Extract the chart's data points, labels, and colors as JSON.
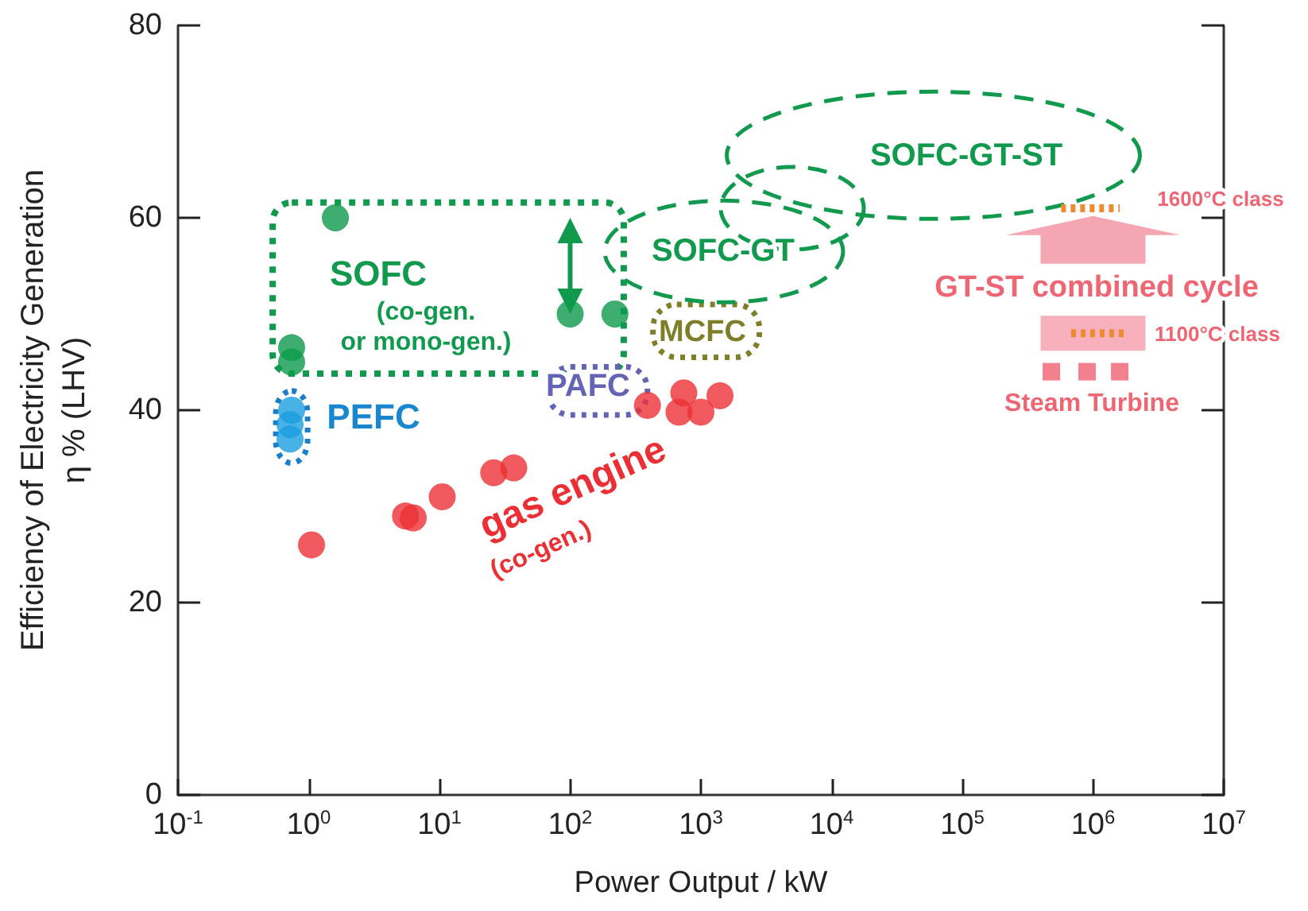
{
  "chart_data": {
    "type": "scatter",
    "xlabel": "Power Output / kW",
    "ylabel": "Efficiency of Electricity Generation\nη % (LHV)",
    "log": "x",
    "xlim": [
      0.1,
      10000000
    ],
    "ylim": [
      0,
      80
    ],
    "xticks": [
      {
        "value": 0.1,
        "label": "10$^{-1}$"
      },
      {
        "value": 1,
        "label": "10$^{0}$"
      },
      {
        "value": 10,
        "label": "10$^{1}$"
      },
      {
        "value": 100,
        "label": "10$^{2}$"
      },
      {
        "value": 1000,
        "label": "10$^{3}$"
      },
      {
        "value": 10000,
        "label": "10$^{4}$"
      },
      {
        "value": 100000,
        "label": "10$^{5}$"
      },
      {
        "value": 1000000,
        "label": "10$^{6}$"
      },
      {
        "value": 10000000,
        "label": "10$^{7}$"
      }
    ],
    "yticks": [
      0,
      20,
      40,
      60,
      80
    ],
    "grid": false,
    "marker": "circle",
    "series": [
      {
        "color": "#0c9a4c",
        "x": [
          1.6,
          0.74,
          0.74,
          100,
          220
        ],
        "values": [
          60,
          46.5,
          45,
          50,
          50
        ]
      },
      {
        "color": "#1a9ee0",
        "x": [
          0.74,
          0.72,
          0.72
        ],
        "values": [
          40,
          38.5,
          37
        ]
      },
      {
        "color": "#ec2f35",
        "x": [
          1.05,
          5.5,
          6.3,
          10.5,
          26,
          37,
          390,
          740,
          680,
          1000,
          1400
        ],
        "values": [
          26,
          29,
          28.8,
          31,
          33.5,
          34,
          40.5,
          41.8,
          39.8,
          39.8,
          41.5
        ]
      },
      {
        "type": "line",
        "color": "#f08a30",
        "line_style": "dotted",
        "marker": "none",
        "x": [
          570000,
          1600000
        ],
        "values": [
          61,
          61
        ]
      },
      {
        "type": "line",
        "color": "#f08a30",
        "line_style": "dotted",
        "marker": "none",
        "x": [
          680000,
          1800000
        ],
        "values": [
          48,
          48
        ]
      },
      {
        "color": "#f06070",
        "marker": "square",
        "x": [
          480000,
          900000,
          1600000
        ],
        "values": [
          44,
          44,
          44
        ]
      }
    ],
    "annotations": [
      "SOFC",
      "(co-gen.\nor mono-gen.)",
      "SOFC-GT",
      "SOFC-GT-ST",
      "MCFC",
      "PAFC",
      "PEFC",
      "gas engine",
      "(co-gen.)",
      "GT-ST combined cycle",
      "1600°C class",
      "1100°C class",
      "Steam Turbine"
    ]
  }
}
